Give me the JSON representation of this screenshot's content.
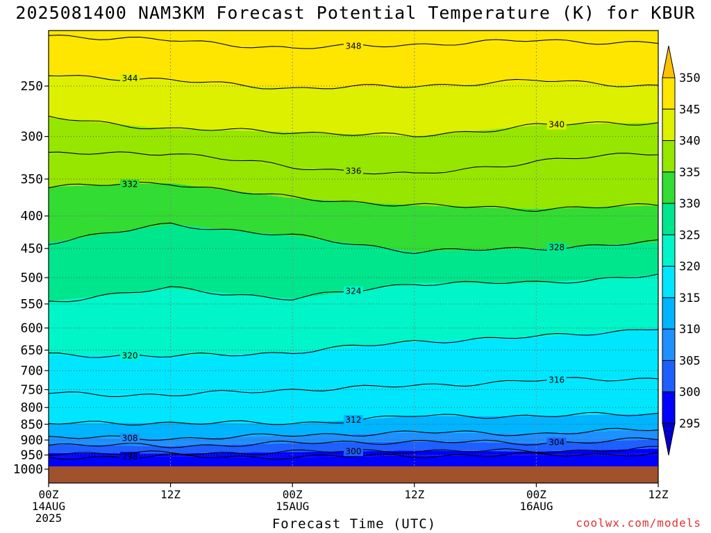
{
  "title": "2025081400 NAM3KM Forecast Potential Temperature (K) for KBUR",
  "credit": "coolwx.com/models",
  "colors": {
    "ground": "#a0522d",
    "contour": "#000000",
    "gridline": "#555555",
    "credit": "#e03030",
    "levels": [
      "#0000c8",
      "#0000ff",
      "#1e5fff",
      "#1e90ff",
      "#00b4ff",
      "#00e6ff",
      "#00f5c8",
      "#00e68c",
      "#32dc32",
      "#96e600",
      "#dcf000",
      "#ffe600",
      "#ffc000"
    ]
  },
  "chart_data": {
    "type": "contour",
    "title": "2025081400 NAM3KM Forecast Potential Temperature (K) for KBUR",
    "xlabel": "Forecast Time (UTC)",
    "ylabel": "",
    "x_range_hours": [
      0,
      60
    ],
    "y_range_hPa": [
      1000,
      200
    ],
    "y_scale": "log",
    "y_ticks": [
      250,
      300,
      350,
      400,
      450,
      500,
      550,
      600,
      650,
      700,
      750,
      800,
      850,
      900,
      950,
      1000
    ],
    "x_ticks": [
      {
        "hour": 0,
        "label": "00Z",
        "sub": "14AUG",
        "sub2": "2025"
      },
      {
        "hour": 12,
        "label": "12Z",
        "sub": "",
        "sub2": ""
      },
      {
        "hour": 24,
        "label": "00Z",
        "sub": "15AUG",
        "sub2": ""
      },
      {
        "hour": 36,
        "label": "12Z",
        "sub": "",
        "sub2": ""
      },
      {
        "hour": 48,
        "label": "00Z",
        "sub": "16AUG",
        "sub2": ""
      },
      {
        "hour": 60,
        "label": "12Z",
        "sub": "",
        "sub2": ""
      }
    ],
    "colorbar": {
      "labels": [
        "350",
        "345",
        "340",
        "335",
        "330",
        "325",
        "320",
        "315",
        "310",
        "305",
        "300",
        "295"
      ],
      "levels": [
        295,
        300,
        305,
        310,
        315,
        320,
        325,
        330,
        335,
        340,
        345,
        350
      ],
      "extend": "both"
    },
    "grid": true,
    "contour_interval": 2,
    "contours": [
      {
        "value": 298,
        "label": "298",
        "points": [
          [
            0,
            958
          ],
          [
            12,
            955
          ],
          [
            24,
            957
          ],
          [
            36,
            952
          ],
          [
            48,
            950
          ],
          [
            60,
            945
          ]
        ]
      },
      {
        "value": 300,
        "label": "300",
        "points": [
          [
            0,
            943
          ],
          [
            12,
            945
          ],
          [
            24,
            940
          ],
          [
            36,
            935
          ],
          [
            48,
            938
          ],
          [
            60,
            928
          ]
        ]
      },
      {
        "value": 304,
        "label": "304",
        "points": [
          [
            0,
            915
          ],
          [
            12,
            920
          ],
          [
            24,
            910
          ],
          [
            36,
            905
          ],
          [
            48,
            910
          ],
          [
            60,
            898
          ]
        ]
      },
      {
        "value": 308,
        "label": "308",
        "points": [
          [
            0,
            892
          ],
          [
            12,
            895
          ],
          [
            24,
            885
          ],
          [
            36,
            875
          ],
          [
            48,
            880
          ],
          [
            60,
            865
          ]
        ]
      },
      {
        "value": 312,
        "label": "312",
        "points": [
          [
            0,
            848
          ],
          [
            12,
            845
          ],
          [
            24,
            848
          ],
          [
            36,
            825
          ],
          [
            48,
            825
          ],
          [
            60,
            818
          ]
        ]
      },
      {
        "value": 316,
        "label": "316",
        "points": [
          [
            0,
            760
          ],
          [
            12,
            765
          ],
          [
            24,
            750
          ],
          [
            36,
            740
          ],
          [
            48,
            725
          ],
          [
            60,
            720
          ]
        ]
      },
      {
        "value": 320,
        "label": "320",
        "points": [
          [
            0,
            660
          ],
          [
            12,
            665
          ],
          [
            24,
            655
          ],
          [
            36,
            630
          ],
          [
            48,
            620
          ],
          [
            60,
            600
          ]
        ]
      },
      {
        "value": 324,
        "label": "324",
        "points": [
          [
            0,
            545
          ],
          [
            12,
            520
          ],
          [
            24,
            540
          ],
          [
            36,
            510
          ],
          [
            48,
            510
          ],
          [
            60,
            495
          ]
        ]
      },
      {
        "value": 328,
        "label": "328",
        "points": [
          [
            0,
            440
          ],
          [
            12,
            412
          ],
          [
            24,
            430
          ],
          [
            36,
            455
          ],
          [
            48,
            450
          ],
          [
            60,
            440
          ]
        ]
      },
      {
        "value": 332,
        "label": "332",
        "points": [
          [
            0,
            360
          ],
          [
            12,
            355
          ],
          [
            24,
            375
          ],
          [
            36,
            385
          ],
          [
            48,
            390
          ],
          [
            60,
            385
          ]
        ]
      },
      {
        "value": 336,
        "label": "336",
        "points": [
          [
            0,
            320
          ],
          [
            12,
            318
          ],
          [
            24,
            335
          ],
          [
            36,
            345
          ],
          [
            48,
            328
          ],
          [
            60,
            318
          ]
        ]
      },
      {
        "value": 340,
        "label": "340",
        "points": [
          [
            0,
            280
          ],
          [
            12,
            292
          ],
          [
            24,
            295
          ],
          [
            36,
            300
          ],
          [
            48,
            288
          ],
          [
            60,
            285
          ]
        ]
      },
      {
        "value": 344,
        "label": "344",
        "points": [
          [
            0,
            240
          ],
          [
            12,
            245
          ],
          [
            24,
            252
          ],
          [
            36,
            250
          ],
          [
            48,
            245
          ],
          [
            60,
            250
          ]
        ]
      },
      {
        "value": 348,
        "label": "348",
        "points": [
          [
            0,
            208
          ],
          [
            12,
            212
          ],
          [
            24,
            218
          ],
          [
            36,
            215
          ],
          [
            48,
            212
          ],
          [
            60,
            214
          ]
        ]
      }
    ]
  }
}
